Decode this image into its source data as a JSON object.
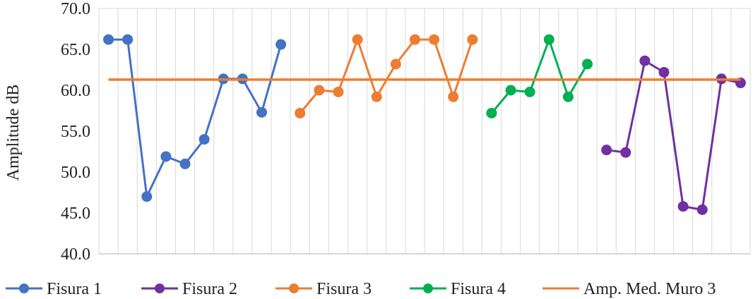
{
  "chart_data": {
    "type": "line",
    "title": "",
    "xlabel": "",
    "ylabel": "Amplitude dB",
    "ylim": [
      40,
      70
    ],
    "ytick_step": 5,
    "ytick_decimals": 1,
    "x_slots": 34,
    "grid": {
      "vertical": true,
      "horizontal": false
    },
    "legend_position": "bottom",
    "series": [
      {
        "name": "Fisura 1",
        "color": "#4472C4",
        "points": [
          [
            1,
            66.2
          ],
          [
            2,
            66.2
          ],
          [
            3,
            47.0
          ],
          [
            4,
            51.9
          ],
          [
            5,
            51.0
          ],
          [
            6,
            54.0
          ],
          [
            7,
            61.4
          ],
          [
            8,
            61.4
          ],
          [
            9,
            57.3
          ],
          [
            10,
            65.6
          ]
        ]
      },
      {
        "name": "Fisura 2",
        "color": "#7030A0",
        "points": [
          [
            27,
            52.7
          ],
          [
            28,
            52.4
          ],
          [
            29,
            63.6
          ],
          [
            30,
            62.2
          ],
          [
            31,
            45.8
          ],
          [
            32,
            45.4
          ],
          [
            33,
            61.4
          ],
          [
            34,
            60.9
          ]
        ]
      },
      {
        "name": "Fisura 3",
        "color": "#ED7D31",
        "points": [
          [
            11,
            57.2
          ],
          [
            12,
            60.0
          ],
          [
            13,
            59.8
          ],
          [
            14,
            66.2
          ],
          [
            15,
            59.2
          ],
          [
            16,
            63.2
          ],
          [
            17,
            66.2
          ],
          [
            18,
            66.2
          ],
          [
            19,
            59.2
          ],
          [
            20,
            66.2
          ]
        ]
      },
      {
        "name": "Fisura 4",
        "color": "#00B050",
        "points": [
          [
            21,
            57.2
          ],
          [
            22,
            60.0
          ],
          [
            23,
            59.8
          ],
          [
            24,
            66.2
          ],
          [
            25,
            59.2
          ],
          [
            26,
            63.2
          ]
        ]
      },
      {
        "name": "Amp. Med. Muro 3",
        "color": "#ED7D31",
        "style": "flat",
        "value": 61.3
      }
    ]
  }
}
